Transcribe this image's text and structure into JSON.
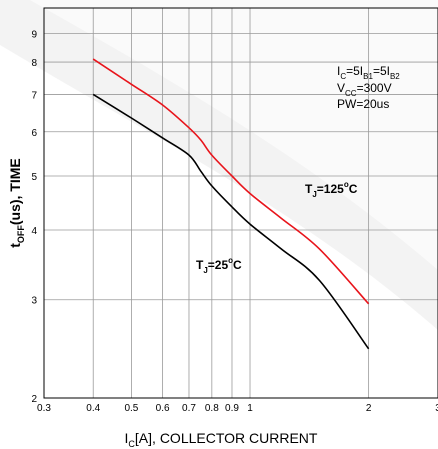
{
  "chart_data": {
    "type": "line",
    "x_scale": "log",
    "y_scale": "log",
    "xlim": [
      0.3,
      3
    ],
    "ylim": [
      2,
      10
    ],
    "grid": true,
    "x_ticks": [
      "0.3",
      "0.4",
      "0.5",
      "0.6",
      "0.7",
      "0.8",
      "0.9",
      "1",
      "2",
      "3"
    ],
    "x_tick_values": [
      0.3,
      0.4,
      0.5,
      0.6,
      0.7,
      0.8,
      0.9,
      1,
      2,
      3
    ],
    "y_ticks": [
      "2",
      "3",
      "4",
      "5",
      "6",
      "7",
      "8",
      "9"
    ],
    "y_tick_values": [
      2,
      3,
      4,
      5,
      6,
      7,
      8,
      9
    ],
    "xlabel": {
      "prefix": "I",
      "sub": "C",
      "suffix": "[A], COLLECTOR CURRENT"
    },
    "ylabel": {
      "prefix": "t",
      "sub": "OFF",
      "suffix": "(us), TIME"
    },
    "conditions": [
      {
        "parts": [
          "I",
          "C",
          "=5I",
          "B1",
          "=5I",
          "B2"
        ]
      },
      {
        "parts": [
          "V",
          "CC",
          "=300V"
        ]
      },
      {
        "parts": [
          "PW=20us"
        ]
      }
    ],
    "series": [
      {
        "label_parts": [
          "T",
          "J",
          "=125",
          "o",
          "C"
        ],
        "color": "#e8141b",
        "x": [
          0.4,
          0.5,
          0.6,
          0.7,
          0.75,
          0.8,
          0.9,
          1.0,
          1.2,
          1.5,
          2.0
        ],
        "y": [
          8.1,
          7.3,
          6.7,
          6.1,
          5.8,
          5.45,
          5.0,
          4.65,
          4.2,
          3.7,
          2.95
        ]
      },
      {
        "label_parts": [
          "T",
          "J",
          "=25",
          "o",
          "C"
        ],
        "color": "#000000",
        "x": [
          0.4,
          0.5,
          0.6,
          0.7,
          0.75,
          0.8,
          0.9,
          1.0,
          1.2,
          1.5,
          2.0
        ],
        "y": [
          7.0,
          6.35,
          5.85,
          5.45,
          5.1,
          4.8,
          4.4,
          4.1,
          3.7,
          3.25,
          2.45
        ]
      }
    ]
  }
}
